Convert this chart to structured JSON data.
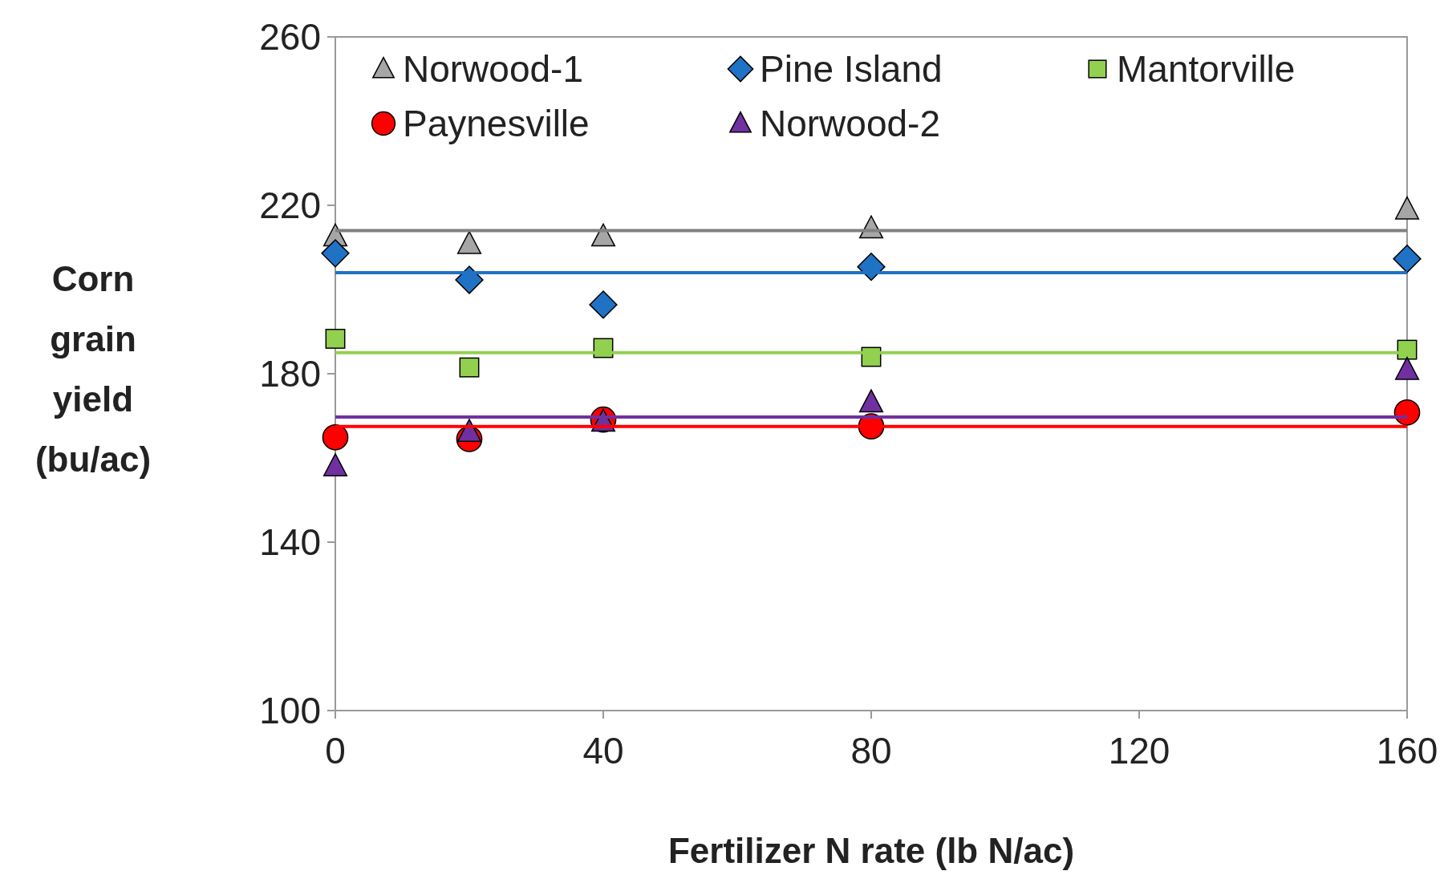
{
  "chart_data": {
    "type": "scatter",
    "xlabel": "Fertilizer N rate (lb N/ac)",
    "ylabel": "Corn grain yield (bu/ac)",
    "x": [
      0,
      20,
      40,
      80,
      160
    ],
    "xlim": [
      0,
      160
    ],
    "xticks": [
      0,
      40,
      80,
      120,
      160
    ],
    "ylim": [
      100,
      260
    ],
    "yticks": [
      100,
      140,
      180,
      220,
      260
    ],
    "legend": "top",
    "series": [
      {
        "name": "Norwood-1",
        "color": "#a6a6a6",
        "marker": "triangle",
        "values": [
          212.6,
          210.8,
          212.6,
          214.5,
          219
        ]
      },
      {
        "name": "Pine Island",
        "color": "#1f72c4",
        "marker": "diamond",
        "values": [
          208.6,
          202.3,
          196.4,
          205.4,
          207.3
        ]
      },
      {
        "name": "Mantorville",
        "color": "#92d050",
        "marker": "square",
        "values": [
          188.3,
          181.5,
          186.1,
          184,
          185.7
        ]
      },
      {
        "name": "Paynesville",
        "color": "#ff0000",
        "marker": "circle",
        "values": [
          164.9,
          164.5,
          169.1,
          167.5,
          170.8
        ]
      },
      {
        "name": "Norwood-2",
        "color": "#7030a0",
        "marker": "triangle",
        "values": [
          158,
          166.2,
          168.6,
          173.2,
          180.9
        ]
      }
    ],
    "ref_lines": [
      {
        "axis": "y",
        "value": 214,
        "color": "#808080"
      },
      {
        "axis": "y",
        "value": 204,
        "color": "#1f72c4"
      },
      {
        "axis": "y",
        "value": 185,
        "color": "#92d050"
      },
      {
        "axis": "y",
        "value": 169.7,
        "color": "#7030a0"
      },
      {
        "axis": "y",
        "value": 167.5,
        "color": "#ff0000"
      }
    ]
  }
}
